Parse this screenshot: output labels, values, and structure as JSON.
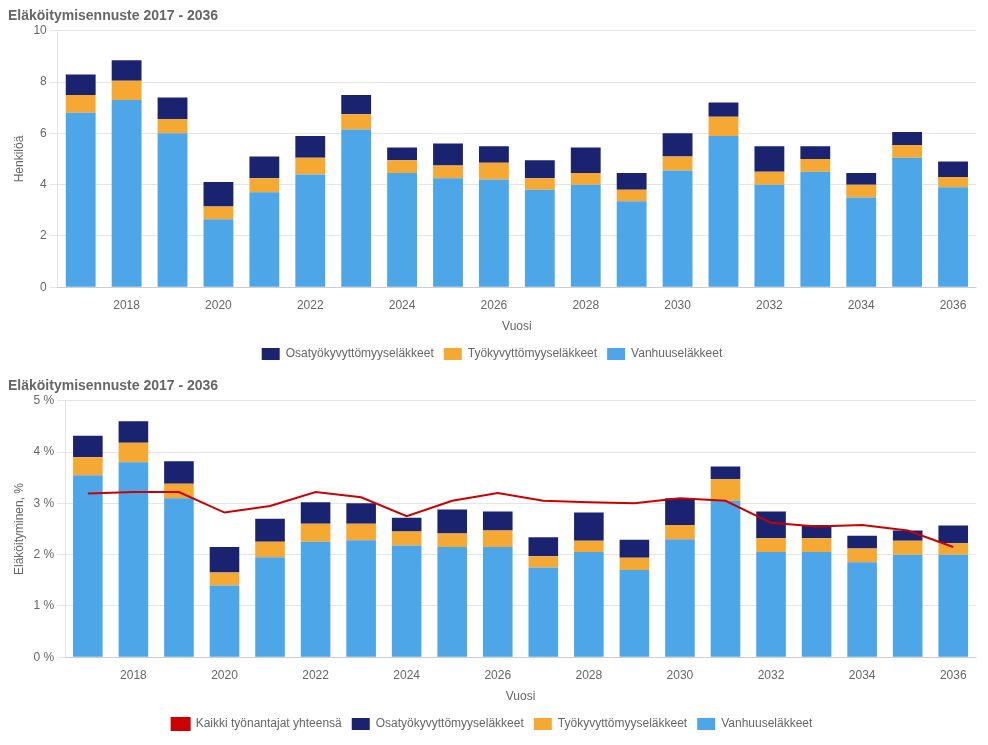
{
  "chart_data": [
    {
      "type": "bar",
      "title": "Eläköitymisennuste 2017 - 2036",
      "x_label": "Vuosi",
      "y_label": "Henkilöä",
      "categories": [
        null,
        "2018",
        null,
        "2020",
        null,
        "2022",
        null,
        "2024",
        null,
        "2026",
        null,
        "2028",
        null,
        "2030",
        null,
        "2032",
        null,
        "2034",
        null,
        "2036"
      ],
      "stacked": true,
      "grid": true,
      "legend": "bottom",
      "ylim": [
        0,
        10
      ],
      "yticks": [
        0,
        2,
        4,
        6,
        8,
        10
      ],
      "series": [
        {
          "name": "Vanhuuseläkkeet",
          "color": "#4da6e8",
          "values": [
            6.8,
            7.3,
            6.0,
            2.65,
            3.7,
            4.4,
            6.15,
            4.45,
            4.25,
            4.2,
            3.8,
            4.0,
            3.35,
            4.55,
            5.9,
            4.0,
            4.5,
            3.5,
            5.05,
            3.9
          ]
        },
        {
          "name": "Työkyvyttömyyseläkkeet",
          "color": "#f5a932",
          "values": [
            0.7,
            0.75,
            0.55,
            0.5,
            0.55,
            0.65,
            0.6,
            0.5,
            0.5,
            0.65,
            0.45,
            0.45,
            0.45,
            0.55,
            0.75,
            0.5,
            0.5,
            0.5,
            0.5,
            0.4
          ]
        },
        {
          "name": "Osatyökyvyttömyyseläkkeet",
          "color": "#1a2370",
          "values": [
            0.8,
            0.8,
            0.85,
            0.95,
            0.85,
            0.85,
            0.75,
            0.5,
            0.85,
            0.65,
            0.7,
            1.0,
            0.65,
            0.9,
            0.55,
            1.0,
            0.5,
            0.45,
            0.5,
            0.6
          ]
        }
      ]
    },
    {
      "type": "bar",
      "title": "Eläköitymisennuste 2017 - 2036",
      "x_label": "Vuosi",
      "y_label": "Eläköityminen, %",
      "categories": [
        null,
        "2018",
        null,
        "2020",
        null,
        "2022",
        null,
        "2024",
        null,
        "2026",
        null,
        "2028",
        null,
        "2030",
        null,
        "2032",
        null,
        "2034",
        null,
        "2036"
      ],
      "stacked": true,
      "grid": true,
      "legend": "bottom",
      "ylim": [
        0,
        5
      ],
      "yticks": [
        {
          "value": 0,
          "label": "0 %"
        },
        {
          "value": 1,
          "label": "1 %"
        },
        {
          "value": 2,
          "label": "2 %"
        },
        {
          "value": 3,
          "label": "3 %"
        },
        {
          "value": 4,
          "label": "4 %"
        },
        {
          "value": 5,
          "label": "5 %"
        }
      ],
      "series": [
        {
          "name": "Vanhuuseläkkeet",
          "color": "#4da6e8",
          "values": [
            3.55,
            3.8,
            3.1,
            1.4,
            1.95,
            2.25,
            2.28,
            2.18,
            2.15,
            2.15,
            1.75,
            2.05,
            1.7,
            2.3,
            3.05,
            2.05,
            2.05,
            1.85,
            2.0,
            2.0
          ]
        },
        {
          "name": "Työkyvyttömyyseläkkeet",
          "color": "#f5a932",
          "values": [
            0.35,
            0.38,
            0.28,
            0.25,
            0.3,
            0.35,
            0.32,
            0.27,
            0.26,
            0.32,
            0.22,
            0.22,
            0.24,
            0.28,
            0.42,
            0.27,
            0.27,
            0.27,
            0.27,
            0.22
          ]
        },
        {
          "name": "Osatyökyvyttömyyseläkkeet",
          "color": "#1a2370",
          "values": [
            0.42,
            0.42,
            0.44,
            0.5,
            0.45,
            0.42,
            0.4,
            0.27,
            0.47,
            0.37,
            0.37,
            0.55,
            0.35,
            0.52,
            0.25,
            0.52,
            0.26,
            0.25,
            0.2,
            0.35
          ]
        },
        {
          "name": "Kaikki työnantajat yhteensä",
          "type": "line",
          "color": "#cc0000",
          "values": [
            3.19,
            3.22,
            3.22,
            2.82,
            2.95,
            3.22,
            3.12,
            2.75,
            3.05,
            3.2,
            3.05,
            3.02,
            3.0,
            3.1,
            3.05,
            2.62,
            2.55,
            2.58,
            2.47,
            2.15
          ]
        }
      ]
    }
  ]
}
